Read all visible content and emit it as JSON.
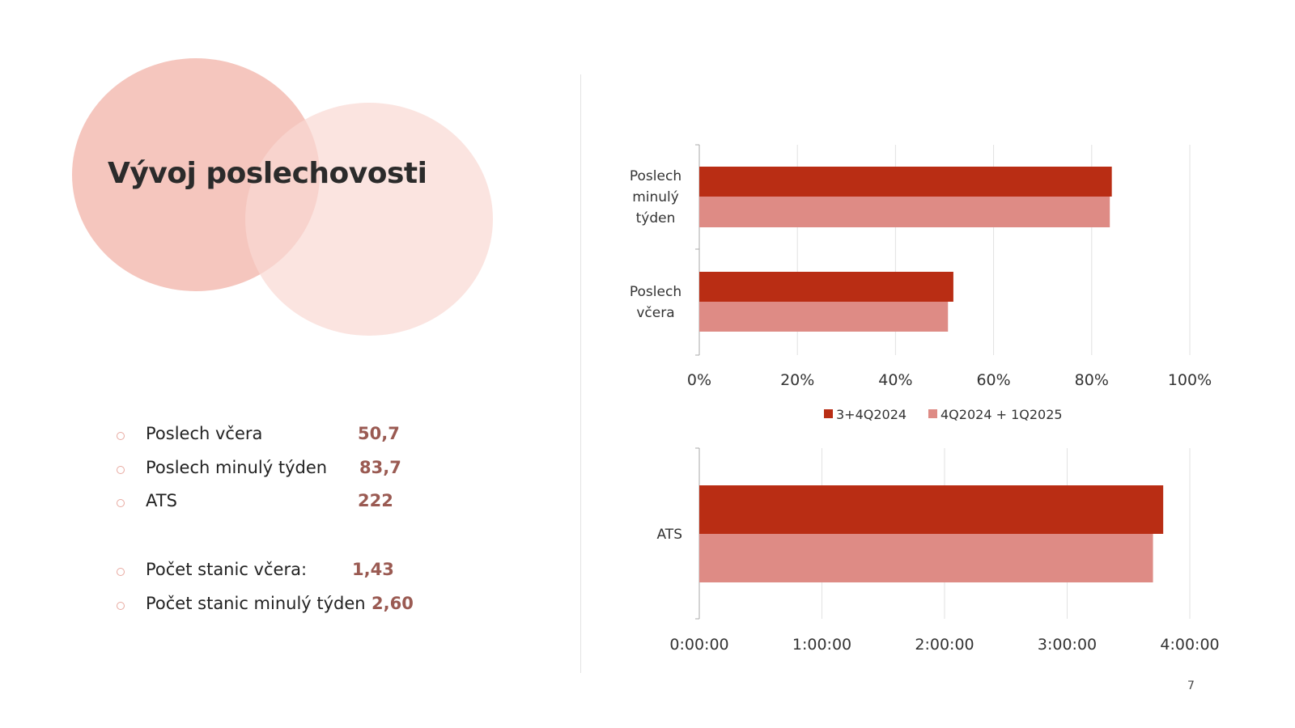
{
  "title": "Vývoj poslechovosti",
  "stats": [
    {
      "label": "Poslech včera",
      "value": "50,7"
    },
    {
      "label": "Poslech minulý týden",
      "value": "83,7"
    },
    {
      "label": "ATS",
      "value": "222"
    },
    {
      "label": "Počet stanic včera:",
      "value": "1,43"
    },
    {
      "label": "Počet stanic minulý týden",
      "value": "2,60"
    }
  ],
  "page_number": "7",
  "colors": {
    "series1": "#b92d14",
    "series2": "#de8b85",
    "circle1": "#f5c6be",
    "circle2": "#fbe2dd",
    "value_text": "#9a5a52"
  },
  "chart_data": [
    {
      "type": "bar",
      "orientation": "horizontal",
      "categories": [
        "Poslech minulý týden",
        "Poslech včera"
      ],
      "category_lines": [
        [
          "Poslech",
          "minulý",
          "týden"
        ],
        [
          "Poslech",
          "včera"
        ]
      ],
      "series": [
        {
          "name": "3+4Q2024",
          "values": [
            84.1,
            51.8
          ]
        },
        {
          "name": "4Q2024 + 1Q2025",
          "values": [
            83.7,
            50.7
          ]
        }
      ],
      "xlim": [
        0,
        100
      ],
      "xticks": [
        "0%",
        "20%",
        "40%",
        "60%",
        "80%",
        "100%"
      ],
      "grid": true,
      "legend": "bottom"
    },
    {
      "type": "bar",
      "orientation": "horizontal",
      "categories": [
        "ATS"
      ],
      "series": [
        {
          "name": "3+4Q2024",
          "values": [
            "3:47:00"
          ]
        },
        {
          "name": "4Q2024 + 1Q2025",
          "values": [
            "3:42:00"
          ]
        }
      ],
      "xlim": [
        "0:00:00",
        "4:00:00"
      ],
      "xticks": [
        "0:00:00",
        "1:00:00",
        "2:00:00",
        "3:00:00",
        "4:00:00"
      ],
      "grid": true
    }
  ]
}
